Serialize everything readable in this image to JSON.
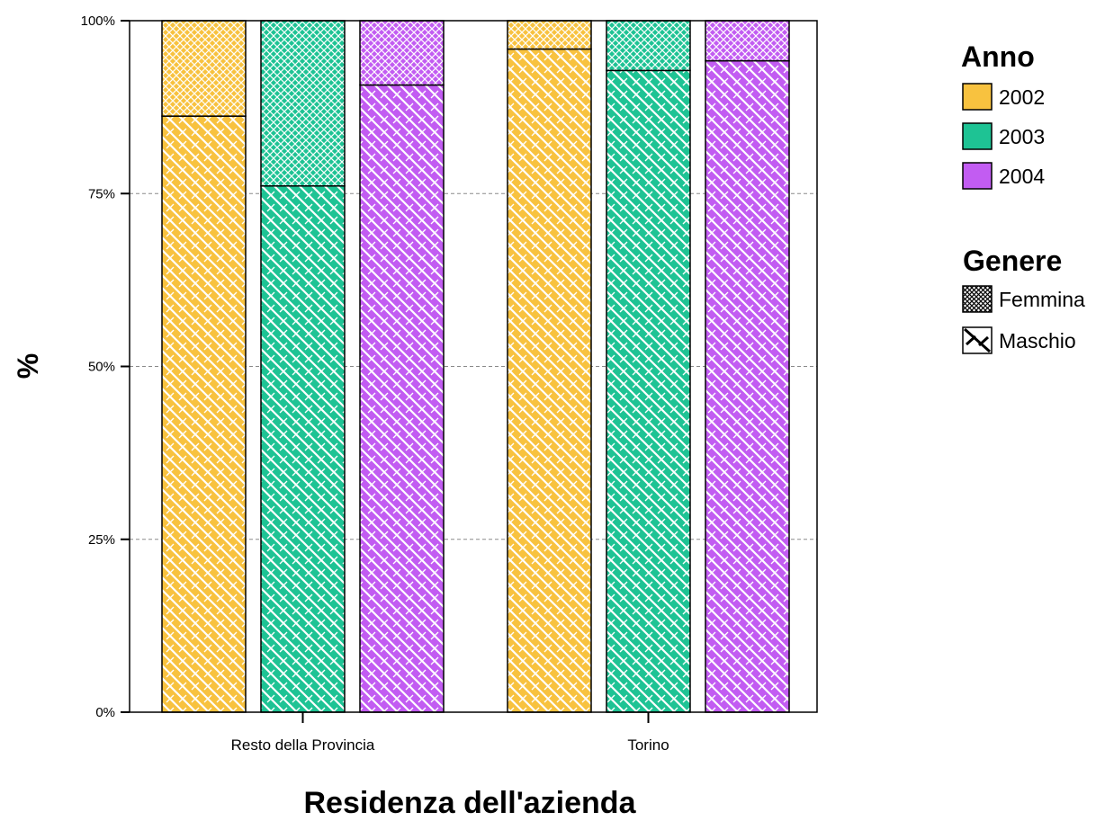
{
  "chart_data": {
    "type": "bar",
    "stacked": true,
    "percent": true,
    "xlabel": "Residenza dell'azienda",
    "ylabel": "%",
    "ylim": [
      0,
      100
    ],
    "yticks": [
      "0%",
      "25%",
      "50%",
      "75%",
      "100%"
    ],
    "ytick_values": [
      0,
      25,
      50,
      75,
      100
    ],
    "grid": "horizontal dashed",
    "categories": [
      "Resto della Provincia",
      "Torino"
    ],
    "series": [
      {
        "name": "2002",
        "color": "#f8c23f",
        "maschio": [
          86.2,
          95.9
        ],
        "femmina": [
          13.8,
          4.1
        ]
      },
      {
        "name": "2003",
        "color": "#1ec394",
        "maschio": [
          76.1,
          92.8
        ],
        "femmina": [
          23.9,
          7.2
        ]
      },
      {
        "name": "2004",
        "color": "#c25cf2",
        "maschio": [
          90.7,
          94.2
        ],
        "femmina": [
          9.3,
          5.8
        ]
      }
    ],
    "legend": {
      "placement": "right",
      "color_title": "Anno",
      "color_items": [
        "2002",
        "2003",
        "2004"
      ],
      "pattern_title": "Genere",
      "pattern_items": [
        "Femmina",
        "Maschio"
      ]
    }
  }
}
